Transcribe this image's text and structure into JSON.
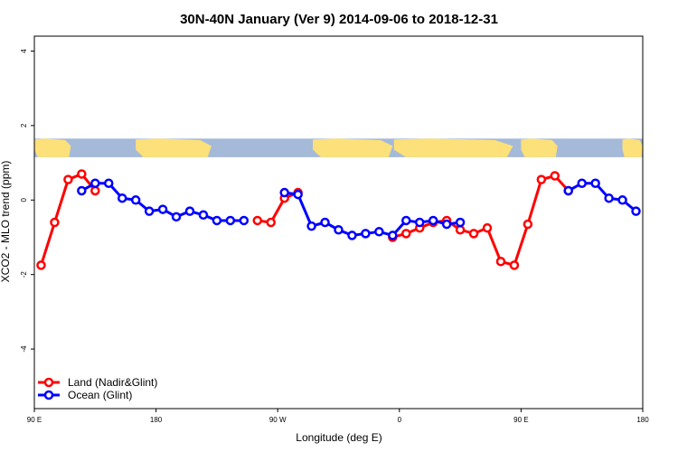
{
  "chart_data": {
    "type": "line",
    "title": "30N-40N January (Ver 9)   2014-09-06 to 2018-12-31",
    "xlabel": "Longitude (deg E)",
    "ylabel": "XCO2 - MLO trend (ppm)",
    "xlim": [
      90,
      540
    ],
    "ylim": [
      -5.6,
      4.4
    ],
    "x_ticks": [
      {
        "value": 90,
        "label": "90 E"
      },
      {
        "value": 180,
        "label": "180"
      },
      {
        "value": 270,
        "label": "90 W"
      },
      {
        "value": 360,
        "label": "0"
      },
      {
        "value": 450,
        "label": "90 E"
      },
      {
        "value": 540,
        "label": "180"
      }
    ],
    "y_ticks": [
      {
        "value": -4,
        "label": "-4"
      },
      {
        "value": -2,
        "label": "-2"
      },
      {
        "value": 0,
        "label": "0"
      },
      {
        "value": 2,
        "label": "2"
      },
      {
        "value": 4,
        "label": "4"
      }
    ],
    "grid": false,
    "legend_position": "bottom-left",
    "series": [
      {
        "name": "Land (Nadir&Glint)",
        "color": "#ff0000",
        "x": [
          95,
          105,
          115,
          125,
          135,
          255,
          265,
          275,
          285,
          355,
          365,
          375,
          385,
          395,
          405,
          415,
          425,
          435,
          445,
          455,
          465,
          475,
          485,
          495,
          505
        ],
        "y": [
          -1.75,
          -0.6,
          0.55,
          0.7,
          0.25,
          -0.55,
          -0.6,
          0.05,
          0.2,
          -1.0,
          -0.9,
          -0.75,
          -0.6,
          -0.55,
          -0.8,
          -0.9,
          -0.75,
          -1.65,
          -1.75,
          -0.65,
          0.55,
          0.65,
          0.25,
          null,
          null
        ]
      },
      {
        "name": "Ocean (Glint)",
        "color": "#0000ff",
        "x": [
          125,
          135,
          145,
          155,
          165,
          175,
          185,
          195,
          205,
          215,
          225,
          235,
          245,
          275,
          285,
          295,
          305,
          315,
          325,
          335,
          345,
          355,
          365,
          375,
          385,
          395,
          405,
          485,
          495,
          505,
          515,
          525,
          535
        ],
        "y": [
          0.25,
          0.45,
          0.45,
          0.05,
          0.0,
          -0.3,
          -0.25,
          -0.45,
          -0.3,
          -0.4,
          -0.55,
          -0.55,
          -0.55,
          0.2,
          0.15,
          -0.7,
          -0.6,
          -0.8,
          -0.95,
          -0.9,
          -0.85,
          -0.95,
          -0.55,
          -0.6,
          -0.55,
          -0.65,
          -0.6,
          0.25,
          0.45,
          0.45,
          0.05,
          0.0,
          -0.3
        ]
      }
    ],
    "annotations": {
      "map_strip_y": [
        1.15,
        1.65
      ],
      "map_strip_colors": {
        "ocean": "#a5b9d8",
        "land": "#fce07a"
      },
      "land_longitudes": [
        [
          90,
          117
        ],
        [
          165,
          221
        ],
        [
          296,
          355
        ],
        [
          356,
          444
        ],
        [
          450,
          477
        ],
        [
          525,
          540
        ]
      ]
    }
  }
}
